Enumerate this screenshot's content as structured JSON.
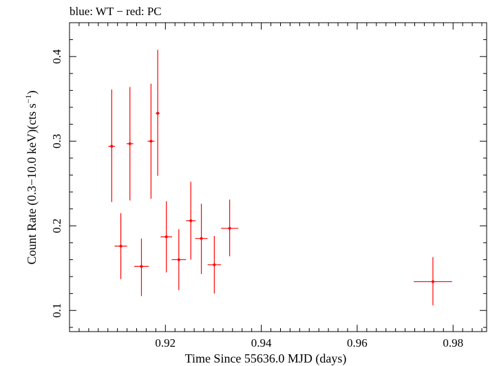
{
  "chart_data": {
    "type": "scatter",
    "title": "blue: WT − red: PC",
    "xlabel": "Time Since 55636.0 MJD (days)",
    "ylabel_main": "Count Rate (0.3−10.0 keV)(cts s",
    "ylabel_sup": "−1",
    "ylabel_close": ")",
    "xlim": [
      0.9,
      0.987
    ],
    "ylim": [
      0.075,
      0.44
    ],
    "x_ticks": [
      0.92,
      0.94,
      0.96,
      0.98
    ],
    "x_tick_labels": [
      "0.92",
      "0.94",
      "0.96",
      "0.98"
    ],
    "y_ticks": [
      0.1,
      0.2,
      0.3,
      0.4
    ],
    "y_tick_labels": [
      "0.1",
      "0.2",
      "0.3",
      "0.4"
    ],
    "grid": false,
    "series": [
      {
        "name": "PC",
        "color": "#ff0000",
        "points": [
          {
            "x": 0.9088,
            "xerr": 0.0007,
            "y": 0.294,
            "ylo": 0.228,
            "yhi": 0.361
          },
          {
            "x": 0.9107,
            "xerr": 0.0013,
            "y": 0.176,
            "ylo": 0.137,
            "yhi": 0.215
          },
          {
            "x": 0.9126,
            "xerr": 0.0007,
            "y": 0.297,
            "ylo": 0.23,
            "yhi": 0.364
          },
          {
            "x": 0.915,
            "xerr": 0.0015,
            "y": 0.152,
            "ylo": 0.117,
            "yhi": 0.185
          },
          {
            "x": 0.917,
            "xerr": 0.0007,
            "y": 0.3,
            "ylo": 0.232,
            "yhi": 0.368
          },
          {
            "x": 0.9184,
            "xerr": 0.0004,
            "y": 0.333,
            "ylo": 0.259,
            "yhi": 0.408
          },
          {
            "x": 0.9202,
            "xerr": 0.0012,
            "y": 0.187,
            "ylo": 0.145,
            "yhi": 0.229
          },
          {
            "x": 0.9228,
            "xerr": 0.0015,
            "y": 0.16,
            "ylo": 0.124,
            "yhi": 0.196
          },
          {
            "x": 0.9253,
            "xerr": 0.001,
            "y": 0.206,
            "ylo": 0.16,
            "yhi": 0.252
          },
          {
            "x": 0.9275,
            "xerr": 0.0013,
            "y": 0.185,
            "ylo": 0.143,
            "yhi": 0.226
          },
          {
            "x": 0.9302,
            "xerr": 0.0014,
            "y": 0.154,
            "ylo": 0.12,
            "yhi": 0.188
          },
          {
            "x": 0.9334,
            "xerr": 0.0018,
            "y": 0.197,
            "ylo": 0.164,
            "yhi": 0.231
          },
          {
            "x": 0.9758,
            "xerr": 0.004,
            "y": 0.134,
            "ylo": 0.106,
            "yhi": 0.163
          }
        ]
      }
    ]
  }
}
